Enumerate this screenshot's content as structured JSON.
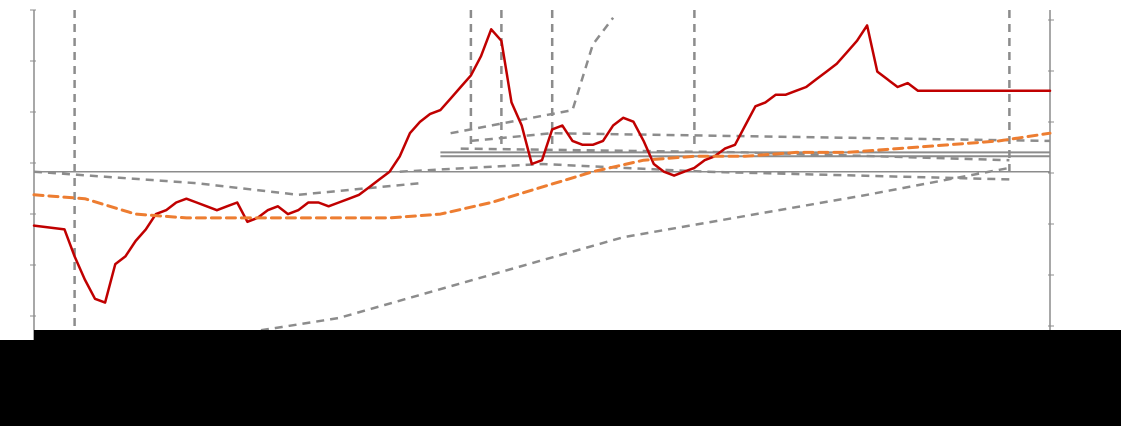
{
  "chart_data": {
    "type": "line",
    "title": "",
    "xlabel": "",
    "ylabel": "",
    "grid": false,
    "legend": "none",
    "x_range": [
      0,
      100
    ],
    "y_range": [
      0,
      100
    ],
    "reference_level": 58,
    "series": [
      {
        "key": "price",
        "color": "#c00000",
        "style": "solid",
        "x": [
          0,
          3,
          4,
          5,
          6,
          7,
          8,
          9,
          10,
          11,
          12,
          13,
          14,
          15,
          16,
          17,
          18,
          19,
          20,
          21,
          22,
          23,
          24,
          25,
          26,
          27,
          28,
          29,
          30,
          31,
          32,
          33,
          34,
          35,
          36,
          37,
          38,
          39,
          40,
          41,
          42,
          43,
          44,
          45,
          46,
          47,
          48,
          49,
          50,
          51,
          52,
          53,
          54,
          55,
          56,
          57,
          58,
          59,
          60,
          61,
          62,
          63,
          64,
          65,
          66,
          67,
          68,
          69,
          70,
          71,
          72,
          73,
          74,
          75,
          76,
          77,
          78,
          79,
          80,
          81,
          82,
          83,
          84,
          85,
          86,
          87,
          88,
          89,
          90,
          91,
          92,
          93,
          94,
          95,
          96,
          97,
          98,
          99,
          100
        ],
        "y": [
          44,
          43,
          36,
          30,
          25,
          24,
          34,
          36,
          40,
          43,
          47,
          48,
          50,
          51,
          50,
          49,
          48,
          49,
          50,
          45,
          46,
          48,
          49,
          47,
          48,
          50,
          50,
          49,
          50,
          51,
          52,
          54,
          56,
          58,
          62,
          68,
          71,
          73,
          74,
          77,
          80,
          83,
          88,
          95,
          92,
          76,
          70,
          60,
          61,
          69,
          70,
          66,
          65,
          65,
          66,
          70,
          72,
          71,
          66,
          60,
          58,
          57,
          58,
          59,
          61,
          62,
          64,
          65,
          70,
          75,
          76,
          78,
          78,
          79,
          80,
          82,
          84,
          86,
          89,
          92,
          96,
          84,
          82,
          80,
          81,
          79,
          79,
          79,
          79,
          79,
          79,
          79,
          79,
          79,
          79,
          79,
          79,
          79,
          79
        ]
      },
      {
        "key": "moving-average",
        "color": "#ed7d31",
        "style": "dashed",
        "x": [
          0,
          5,
          10,
          15,
          20,
          25,
          30,
          35,
          40,
          45,
          50,
          55,
          60,
          65,
          70,
          75,
          80,
          85,
          90,
          95,
          100
        ],
        "y": [
          52,
          51,
          47,
          46,
          46,
          46,
          46,
          46,
          47,
          50,
          54,
          58,
          61,
          62,
          62,
          63,
          63,
          64,
          65,
          66,
          68
        ]
      }
    ]
  }
}
